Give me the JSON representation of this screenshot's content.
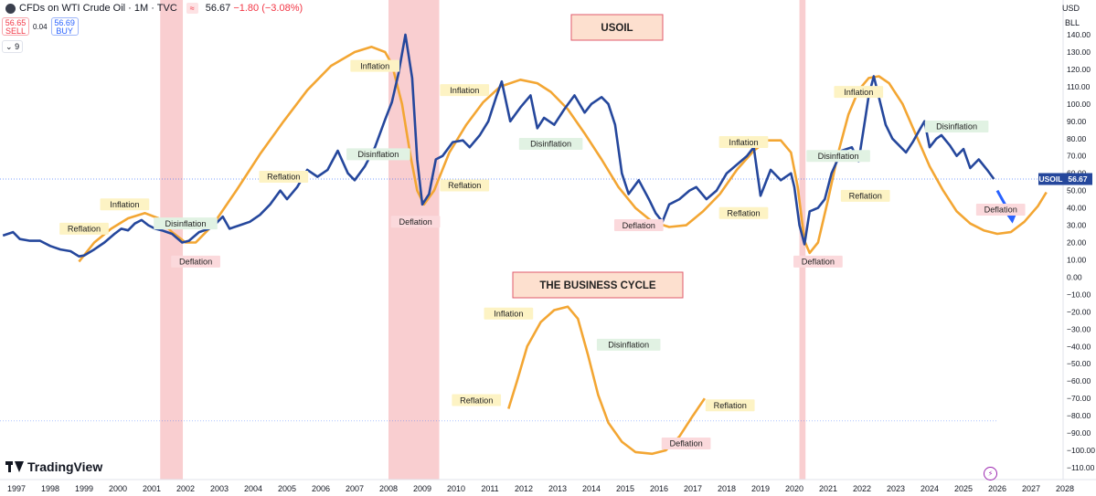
{
  "header": {
    "title": "CFDs on WTI Crude Oil · 1M · TVC",
    "indicator_badge": "≈",
    "last": "56.67",
    "change": "−1.80 (−3.08%)"
  },
  "trade": {
    "sell_price": "56.65",
    "sell_label": "SELL",
    "spread": "0.04",
    "buy_price": "56.69",
    "buy_label": "BUY"
  },
  "indicators_toggle": "9",
  "currency": "USD",
  "unit": "BLL",
  "brand": "TradingView",
  "colors": {
    "price_line": "#25479c",
    "cycle_curve": "#f3a633",
    "recession_band": "#f8c5c8",
    "title_box_fill": "#fde0cf",
    "title_box_border": "#e05a6b",
    "label_yellow": "#fdf3c4",
    "label_green": "#e1f2e3",
    "label_red": "#fbd9dc",
    "arrow": "#2962ff"
  },
  "chart_data": {
    "type": "line",
    "title": "USOIL",
    "subtitle": "THE BUSINESS CYCLE",
    "xlabel": "",
    "ylabel": "",
    "xlim": [
      1996.6,
      2028.4
    ],
    "ylim": [
      -116,
      150
    ],
    "x_ticks": [
      "1997",
      "1998",
      "1999",
      "2000",
      "2001",
      "2002",
      "2003",
      "2004",
      "2005",
      "2006",
      "2007",
      "2008",
      "2009",
      "2010",
      "2011",
      "2012",
      "2013",
      "2014",
      "2015",
      "2016",
      "2017",
      "2018",
      "2019",
      "2020",
      "2021",
      "2022",
      "2023",
      "2024",
      "2025",
      "2026",
      "2027",
      "2028"
    ],
    "y_ticks": [
      "140.00",
      "130.00",
      "120.00",
      "110.00",
      "100.00",
      "90.00",
      "80.00",
      "70.00",
      "60.00",
      "50.00",
      "40.00",
      "30.00",
      "20.00",
      "10.00",
      "0.00",
      "−10.00",
      "−20.00",
      "−30.00",
      "−40.00",
      "−50.00",
      "−60.00",
      "−70.00",
      "−80.00",
      "−90.00",
      "−100.00",
      "−110.00"
    ],
    "price_tag": {
      "name": "USOIL",
      "value": "56.67"
    },
    "recessions": [
      [
        2001.25,
        2001.92
      ],
      [
        2008.0,
        2009.5
      ],
      [
        2020.15,
        2020.33
      ]
    ],
    "series": [
      {
        "name": "USOIL",
        "points": [
          [
            1996.6,
            24
          ],
          [
            1996.9,
            26
          ],
          [
            1997.1,
            22
          ],
          [
            1997.4,
            21
          ],
          [
            1997.7,
            21
          ],
          [
            1998.0,
            18
          ],
          [
            1998.3,
            16
          ],
          [
            1998.6,
            15
          ],
          [
            1998.85,
            12
          ],
          [
            1999.0,
            12.5
          ],
          [
            1999.3,
            16
          ],
          [
            1999.6,
            20
          ],
          [
            1999.9,
            25
          ],
          [
            2000.1,
            28
          ],
          [
            2000.3,
            27
          ],
          [
            2000.5,
            31
          ],
          [
            2000.7,
            33
          ],
          [
            2000.9,
            30
          ],
          [
            2001.1,
            28
          ],
          [
            2001.3,
            27
          ],
          [
            2001.6,
            25
          ],
          [
            2001.9,
            20
          ],
          [
            2002.1,
            21
          ],
          [
            2002.4,
            26
          ],
          [
            2002.7,
            28
          ],
          [
            2002.9,
            31
          ],
          [
            2003.1,
            35
          ],
          [
            2003.3,
            28
          ],
          [
            2003.6,
            30
          ],
          [
            2003.9,
            32
          ],
          [
            2004.2,
            36
          ],
          [
            2004.5,
            42
          ],
          [
            2004.8,
            50
          ],
          [
            2005.0,
            45
          ],
          [
            2005.3,
            52
          ],
          [
            2005.6,
            62
          ],
          [
            2005.9,
            58
          ],
          [
            2006.2,
            62
          ],
          [
            2006.5,
            73
          ],
          [
            2006.8,
            60
          ],
          [
            2007.0,
            56
          ],
          [
            2007.3,
            64
          ],
          [
            2007.6,
            75
          ],
          [
            2007.9,
            91
          ],
          [
            2008.1,
            101
          ],
          [
            2008.3,
            118
          ],
          [
            2008.5,
            140
          ],
          [
            2008.7,
            115
          ],
          [
            2008.85,
            68
          ],
          [
            2009.0,
            42
          ],
          [
            2009.2,
            48
          ],
          [
            2009.4,
            68
          ],
          [
            2009.6,
            70
          ],
          [
            2009.9,
            78
          ],
          [
            2010.2,
            79
          ],
          [
            2010.4,
            75
          ],
          [
            2010.7,
            82
          ],
          [
            2010.95,
            90
          ],
          [
            2011.2,
            105
          ],
          [
            2011.35,
            113
          ],
          [
            2011.6,
            90
          ],
          [
            2011.9,
            98
          ],
          [
            2012.2,
            105
          ],
          [
            2012.4,
            86
          ],
          [
            2012.6,
            92
          ],
          [
            2012.9,
            88
          ],
          [
            2013.2,
            97
          ],
          [
            2013.5,
            105
          ],
          [
            2013.8,
            95
          ],
          [
            2014.0,
            100
          ],
          [
            2014.3,
            104
          ],
          [
            2014.5,
            100
          ],
          [
            2014.7,
            88
          ],
          [
            2014.9,
            60
          ],
          [
            2015.1,
            48
          ],
          [
            2015.4,
            56
          ],
          [
            2015.7,
            45
          ],
          [
            2015.9,
            37
          ],
          [
            2016.1,
            32
          ],
          [
            2016.3,
            42
          ],
          [
            2016.6,
            45
          ],
          [
            2016.9,
            50
          ],
          [
            2017.1,
            52
          ],
          [
            2017.4,
            45
          ],
          [
            2017.7,
            50
          ],
          [
            2018.0,
            60
          ],
          [
            2018.3,
            65
          ],
          [
            2018.6,
            70
          ],
          [
            2018.8,
            75
          ],
          [
            2019.0,
            47
          ],
          [
            2019.3,
            62
          ],
          [
            2019.6,
            56
          ],
          [
            2019.9,
            60
          ],
          [
            2020.0,
            52
          ],
          [
            2020.15,
            30
          ],
          [
            2020.3,
            19
          ],
          [
            2020.45,
            38
          ],
          [
            2020.7,
            40
          ],
          [
            2020.9,
            45
          ],
          [
            2021.1,
            60
          ],
          [
            2021.4,
            73
          ],
          [
            2021.7,
            75
          ],
          [
            2021.9,
            67
          ],
          [
            2022.1,
            92
          ],
          [
            2022.2,
            105
          ],
          [
            2022.35,
            116
          ],
          [
            2022.55,
            100
          ],
          [
            2022.7,
            88
          ],
          [
            2022.9,
            80
          ],
          [
            2023.1,
            76
          ],
          [
            2023.3,
            72
          ],
          [
            2023.5,
            78
          ],
          [
            2023.7,
            85
          ],
          [
            2023.85,
            90
          ],
          [
            2024.0,
            75
          ],
          [
            2024.2,
            80
          ],
          [
            2024.35,
            82
          ],
          [
            2024.6,
            76
          ],
          [
            2024.8,
            70
          ],
          [
            2025.0,
            74
          ],
          [
            2025.2,
            63
          ],
          [
            2025.45,
            68
          ],
          [
            2025.7,
            62
          ],
          [
            2025.9,
            56.67
          ]
        ]
      },
      {
        "name": "cycle",
        "points": [
          [
            1998.85,
            9
          ],
          [
            1999.3,
            20
          ],
          [
            1999.8,
            28
          ],
          [
            2000.3,
            34
          ],
          [
            2000.8,
            37
          ],
          [
            2001.2,
            34
          ],
          [
            2001.6,
            26
          ],
          [
            2002.0,
            20
          ],
          [
            2002.3,
            20
          ],
          [
            2002.8,
            30
          ],
          [
            2003.5,
            50
          ],
          [
            2004.2,
            71
          ],
          [
            2004.9,
            90
          ],
          [
            2005.6,
            108
          ],
          [
            2006.3,
            122
          ],
          [
            2007.0,
            130
          ],
          [
            2007.5,
            133
          ],
          [
            2007.9,
            130
          ],
          [
            2008.1,
            123
          ],
          [
            2008.4,
            100
          ],
          [
            2008.65,
            70
          ],
          [
            2008.85,
            50
          ],
          [
            2009.05,
            42
          ],
          [
            2009.35,
            50
          ],
          [
            2009.8,
            72
          ],
          [
            2010.3,
            88
          ],
          [
            2010.8,
            101
          ],
          [
            2011.3,
            110
          ],
          [
            2011.9,
            114
          ],
          [
            2012.4,
            112
          ],
          [
            2012.8,
            107
          ],
          [
            2013.3,
            97
          ],
          [
            2013.8,
            83
          ],
          [
            2014.3,
            68
          ],
          [
            2014.8,
            52
          ],
          [
            2015.3,
            40
          ],
          [
            2015.8,
            32
          ],
          [
            2016.3,
            29
          ],
          [
            2016.8,
            30
          ],
          [
            2017.3,
            38
          ],
          [
            2017.8,
            48
          ],
          [
            2018.3,
            62
          ],
          [
            2018.8,
            73
          ],
          [
            2019.2,
            79
          ],
          [
            2019.6,
            79
          ],
          [
            2019.9,
            72
          ],
          [
            2020.1,
            52
          ],
          [
            2020.3,
            21
          ],
          [
            2020.45,
            14
          ],
          [
            2020.7,
            20
          ],
          [
            2021.0,
            45
          ],
          [
            2021.3,
            72
          ],
          [
            2021.6,
            94
          ],
          [
            2021.9,
            108
          ],
          [
            2022.2,
            115
          ],
          [
            2022.5,
            116
          ],
          [
            2022.8,
            112
          ],
          [
            2023.2,
            100
          ],
          [
            2023.6,
            82
          ],
          [
            2024.0,
            64
          ],
          [
            2024.4,
            50
          ],
          [
            2024.8,
            38
          ],
          [
            2025.2,
            31
          ],
          [
            2025.6,
            27
          ],
          [
            2026.0,
            25
          ],
          [
            2026.4,
            26
          ],
          [
            2026.8,
            32
          ],
          [
            2027.2,
            41
          ],
          [
            2027.45,
            49
          ]
        ]
      },
      {
        "name": "business-cycle-diagram",
        "points": [
          [
            2011.55,
            -76
          ],
          [
            2011.8,
            -60
          ],
          [
            2012.1,
            -40
          ],
          [
            2012.5,
            -26
          ],
          [
            2012.9,
            -19
          ],
          [
            2013.3,
            -17
          ],
          [
            2013.6,
            -24
          ],
          [
            2013.9,
            -45
          ],
          [
            2014.2,
            -68
          ],
          [
            2014.5,
            -84
          ],
          [
            2014.9,
            -95
          ],
          [
            2015.3,
            -101
          ],
          [
            2015.8,
            -102
          ],
          [
            2016.2,
            -100
          ],
          [
            2016.6,
            -92
          ],
          [
            2017.0,
            -80
          ],
          [
            2017.35,
            -70
          ]
        ]
      }
    ],
    "annotations": [
      {
        "text": "Reflation",
        "x": 1999.0,
        "y": 28,
        "style": "yellow"
      },
      {
        "text": "Inflation",
        "x": 2000.2,
        "y": 42,
        "style": "yellow"
      },
      {
        "text": "Disinflation",
        "x": 2002.0,
        "y": 31,
        "style": "green"
      },
      {
        "text": "Deflation",
        "x": 2002.3,
        "y": 9,
        "style": "red"
      },
      {
        "text": "Reflation",
        "x": 2004.9,
        "y": 58,
        "style": "yellow"
      },
      {
        "text": "Inflation",
        "x": 2007.6,
        "y": 122,
        "style": "yellow"
      },
      {
        "text": "Disinflation",
        "x": 2007.7,
        "y": 71,
        "style": "green"
      },
      {
        "text": "Deflation",
        "x": 2008.8,
        "y": 32,
        "style": "red"
      },
      {
        "text": "Inflation",
        "x": 2010.25,
        "y": 108,
        "style": "yellow"
      },
      {
        "text": "Reflation",
        "x": 2010.25,
        "y": 53,
        "style": "yellow"
      },
      {
        "text": "Disinflation",
        "x": 2012.8,
        "y": 77,
        "style": "green"
      },
      {
        "text": "Deflation",
        "x": 2015.4,
        "y": 30,
        "style": "red"
      },
      {
        "text": "Inflation",
        "x": 2018.5,
        "y": 78,
        "style": "yellow"
      },
      {
        "text": "Reflation",
        "x": 2018.5,
        "y": 37,
        "style": "yellow"
      },
      {
        "text": "Disinflation",
        "x": 2021.3,
        "y": 70,
        "style": "green"
      },
      {
        "text": "Deflation",
        "x": 2020.7,
        "y": 9,
        "style": "red"
      },
      {
        "text": "Reflation",
        "x": 2022.1,
        "y": 47,
        "style": "yellow"
      },
      {
        "text": "Inflation",
        "x": 2021.9,
        "y": 107,
        "style": "yellow"
      },
      {
        "text": "Disinflation",
        "x": 2024.8,
        "y": 87,
        "style": "green"
      },
      {
        "text": "Deflation",
        "x": 2026.1,
        "y": 39,
        "style": "red"
      },
      {
        "text": "Inflation",
        "x": 2011.55,
        "y": -21,
        "style": "yellow"
      },
      {
        "text": "Disinflation",
        "x": 2015.1,
        "y": -39,
        "style": "green"
      },
      {
        "text": "Reflation",
        "x": 2010.6,
        "y": -71,
        "style": "yellow"
      },
      {
        "text": "Deflation",
        "x": 2016.8,
        "y": -96,
        "style": "red"
      },
      {
        "text": "Reflation",
        "x": 2018.1,
        "y": -74,
        "style": "yellow"
      }
    ],
    "arrow": {
      "from": [
        2026.0,
        50
      ],
      "to": [
        2026.45,
        31
      ]
    },
    "dotted_levels": [
      56.67,
      -83
    ],
    "grid": false,
    "legend": "none"
  }
}
